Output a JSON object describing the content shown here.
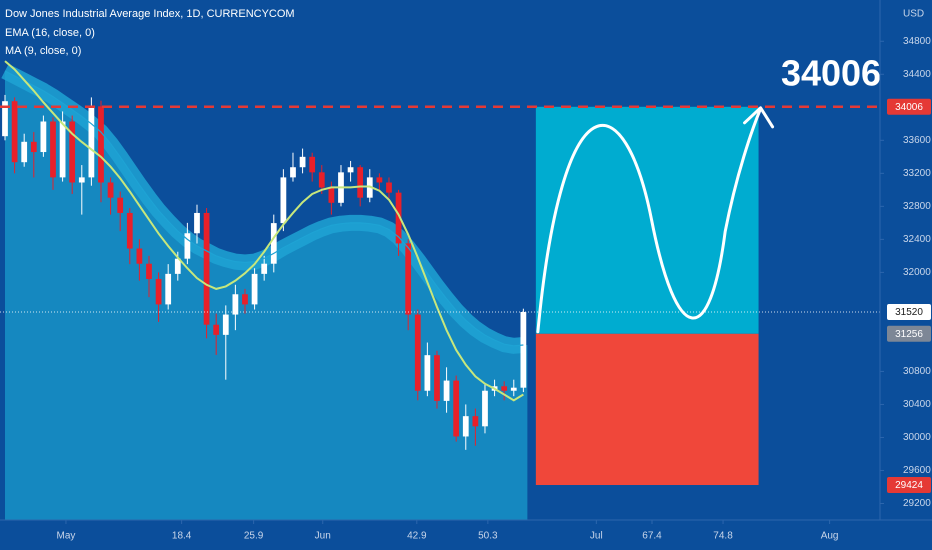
{
  "chart_data": {
    "type": "candlestick",
    "title": "Dow Jones Industrial Average Index, 1D, CURRENCYCOM",
    "currency": "USD",
    "categories": [
      null,
      null,
      null,
      null,
      null,
      null,
      null,
      null,
      null,
      null,
      null,
      null,
      null,
      null,
      null,
      null,
      null,
      null,
      null,
      null,
      null,
      null,
      null,
      null,
      null,
      null,
      null,
      null,
      null,
      null,
      null,
      null,
      null,
      null,
      null,
      null,
      null,
      null,
      null,
      null,
      null,
      null,
      null,
      null,
      null,
      null,
      null,
      null,
      null,
      null,
      null,
      null,
      null,
      null,
      null
    ],
    "open": [
      33650,
      34074,
      33335,
      33582,
      33458,
      33828,
      33151,
      33828,
      33089,
      33151,
      34012,
      33089,
      32905,
      32720,
      32289,
      32105,
      31920,
      31612,
      31982,
      32166,
      32474,
      32720,
      31366,
      31243,
      31489,
      31735,
      31612,
      31982,
      32105,
      32597,
      33151,
      33274,
      33400,
      33212,
      33028,
      32843,
      33212,
      33274,
      32905,
      33151,
      33089,
      32966,
      32351,
      31489,
      30566,
      30997,
      30443,
      30689,
      30012,
      30258,
      30135,
      30566,
      30620,
      30566,
      30603
    ],
    "high": [
      34150,
      34120,
      33680,
      33700,
      33900,
      33880,
      33950,
      33900,
      33300,
      34120,
      34080,
      33150,
      32980,
      32780,
      32400,
      32200,
      32000,
      32100,
      32250,
      32600,
      32820,
      32780,
      31500,
      31600,
      31850,
      31800,
      32050,
      32200,
      32700,
      33250,
      33450,
      33500,
      33450,
      33300,
      33100,
      33300,
      33350,
      33300,
      33250,
      33200,
      33150,
      33000,
      32400,
      31550,
      31150,
      31050,
      30850,
      30750,
      30400,
      30350,
      30650,
      30700,
      30680,
      30700,
      31560
    ],
    "low": [
      33600,
      33200,
      33280,
      33150,
      33400,
      33000,
      33100,
      32950,
      32700,
      33050,
      32850,
      32700,
      32500,
      32100,
      31900,
      31700,
      31400,
      31550,
      31900,
      32100,
      32350,
      31200,
      31000,
      30700,
      31300,
      31500,
      31550,
      31900,
      32000,
      32500,
      33100,
      33200,
      33100,
      32950,
      32700,
      32800,
      33100,
      32800,
      32850,
      33000,
      32900,
      32200,
      31300,
      30450,
      30500,
      30350,
      30300,
      29950,
      29850,
      29900,
      30050,
      30500,
      30450,
      30500,
      30550
    ],
    "close": [
      34074,
      33335,
      33582,
      33458,
      33828,
      33151,
      33828,
      33089,
      33151,
      34012,
      33089,
      32905,
      32720,
      32289,
      32105,
      31920,
      31612,
      31982,
      32166,
      32474,
      32720,
      31366,
      31243,
      31489,
      31735,
      31612,
      31982,
      32105,
      32597,
      33151,
      33274,
      33400,
      33212,
      33028,
      32843,
      33212,
      33274,
      32905,
      33151,
      33089,
      32966,
      32351,
      31489,
      30566,
      30997,
      30443,
      30689,
      30012,
      30258,
      30135,
      30566,
      30620,
      30566,
      30603,
      31520
    ],
    "up_color": "#ffffff",
    "down_color": "#e8202a",
    "series": [
      {
        "name": "EMA (16, close, 0)",
        "color": "#1ea3d4",
        "fill": "#1588c0",
        "values": [
          34440,
          34380,
          34320,
          34260,
          34200,
          34130,
          34050,
          33970,
          33890,
          33800,
          33700,
          33560,
          33400,
          33230,
          33060,
          32900,
          32750,
          32620,
          32500,
          32400,
          32320,
          32260,
          32200,
          32160,
          32130,
          32120,
          32130,
          32170,
          32230,
          32300,
          32360,
          32420,
          32480,
          32530,
          32570,
          32590,
          32600,
          32600,
          32590,
          32570,
          32520,
          32430,
          32300,
          32150,
          31990,
          31830,
          31680,
          31540,
          31420,
          31320,
          31240,
          31180,
          31130,
          31110,
          31120
        ]
      },
      {
        "name": "MA (9, close, 0)",
        "color": "#c7e77c",
        "values": [
          34560,
          34460,
          34330,
          34200,
          34060,
          33930,
          33800,
          33680,
          33580,
          33490,
          33400,
          33280,
          33140,
          32980,
          32810,
          32640,
          32470,
          32320,
          32180,
          32050,
          31930,
          31850,
          31800,
          31830,
          31900,
          31990,
          32100,
          32250,
          32420,
          32580,
          32720,
          32850,
          32950,
          33000,
          33030,
          33030,
          33030,
          33040,
          33040,
          32990,
          32880,
          32700,
          32460,
          32180,
          31880,
          31580,
          31300,
          31060,
          30880,
          30740,
          30650,
          30590,
          30520,
          30450,
          30520
        ]
      }
    ],
    "ylim": [
      29000,
      35300
    ],
    "yticks": [
      34800,
      34400,
      33600,
      33200,
      32800,
      32400,
      32000,
      30800,
      30400,
      30000,
      29600,
      29200
    ],
    "xlim": [
      -0.52,
      91.15
    ],
    "xticks": [
      {
        "value": 6.35,
        "label": "May"
      },
      18.4,
      25.9,
      {
        "value": 33.1,
        "label": "Jun"
      },
      42.9,
      50.3,
      {
        "value": 61.6,
        "label": "Jul"
      },
      67.4,
      74.8,
      {
        "value": 85.9,
        "label": "Aug"
      }
    ],
    "price_levels": [
      {
        "value": 34006,
        "color": "#e53935"
      },
      {
        "value": 31520,
        "color": "#ffffff"
      },
      {
        "value": 31256,
        "color": "#7d8796"
      },
      {
        "value": 29424,
        "color": "#e53935"
      }
    ],
    "projection": {
      "target": 34006,
      "entry": 31256,
      "stop": 29424,
      "start": 55.3,
      "end": 78.5,
      "profit_color": "#00acd0",
      "loss_color": "#f0473a"
    }
  }
}
